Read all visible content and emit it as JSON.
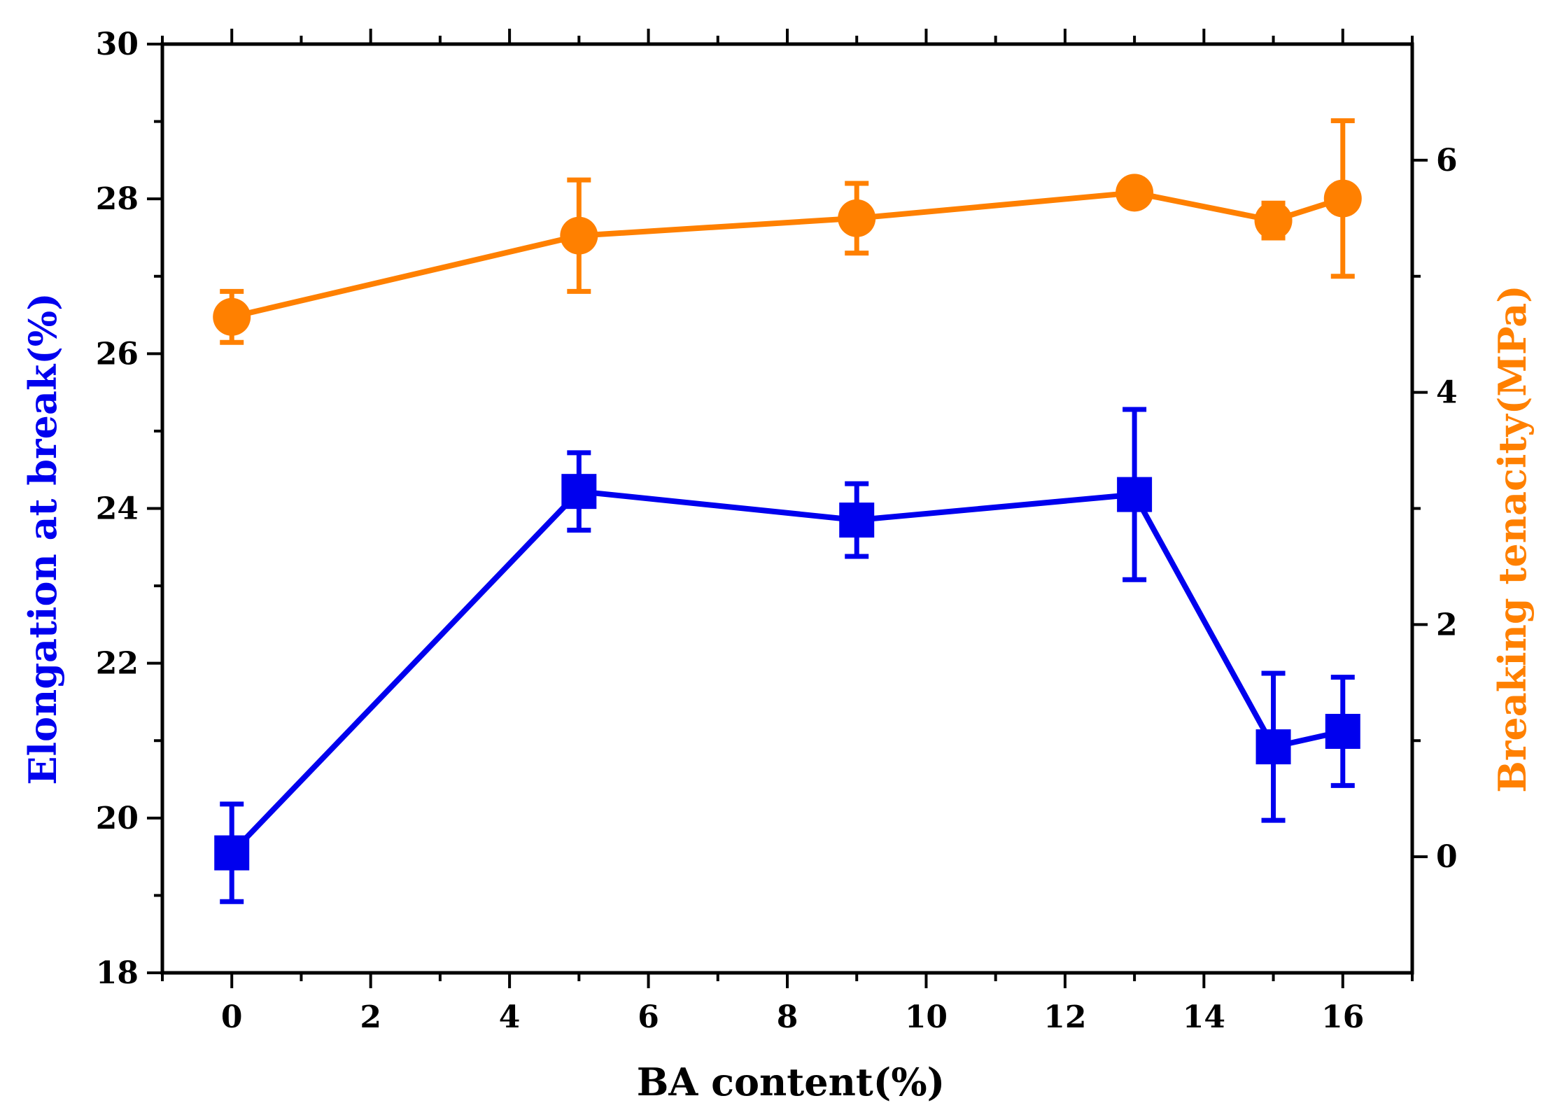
{
  "chart_data": {
    "type": "line",
    "xlabel": "BA content(%)",
    "ylabel_left": "Elongation at break(%)",
    "ylabel_right": "Breaking tenacity(MPa)",
    "xlim": [
      -1,
      17
    ],
    "ylim_left": [
      18,
      30
    ],
    "ylim_right": [
      -1,
      7
    ],
    "x_ticks": [
      0,
      2,
      4,
      6,
      8,
      10,
      12,
      14,
      16
    ],
    "y_left_ticks": [
      18,
      20,
      22,
      24,
      26,
      28,
      30
    ],
    "y_right_ticks": [
      0,
      2,
      4,
      6
    ],
    "x_tick_labels": [
      "0",
      "2",
      "4",
      "6",
      "8",
      "10",
      "12",
      "14",
      "16"
    ],
    "y_left_tick_labels": [
      "18",
      "20",
      "22",
      "24",
      "26",
      "28",
      "30"
    ],
    "y_right_tick_labels": [
      "0",
      "2",
      "4",
      "6"
    ],
    "x": [
      0,
      5,
      9,
      13,
      15,
      16
    ],
    "series": [
      {
        "name": "Elongation at break",
        "axis": "left",
        "marker": "square",
        "color": "#0000ee",
        "values": [
          19.55,
          24.22,
          23.85,
          24.18,
          20.92,
          21.12
        ],
        "errors": [
          0.63,
          0.5,
          0.47,
          1.1,
          0.95,
          0.7
        ]
      },
      {
        "name": "Breaking tenacity",
        "axis": "right",
        "marker": "circle",
        "color": "#ff8000",
        "values": [
          4.65,
          5.35,
          5.5,
          5.72,
          5.48,
          5.67
        ],
        "errors": [
          0.22,
          0.48,
          0.3,
          0.0,
          0.15,
          0.67
        ]
      }
    ]
  }
}
